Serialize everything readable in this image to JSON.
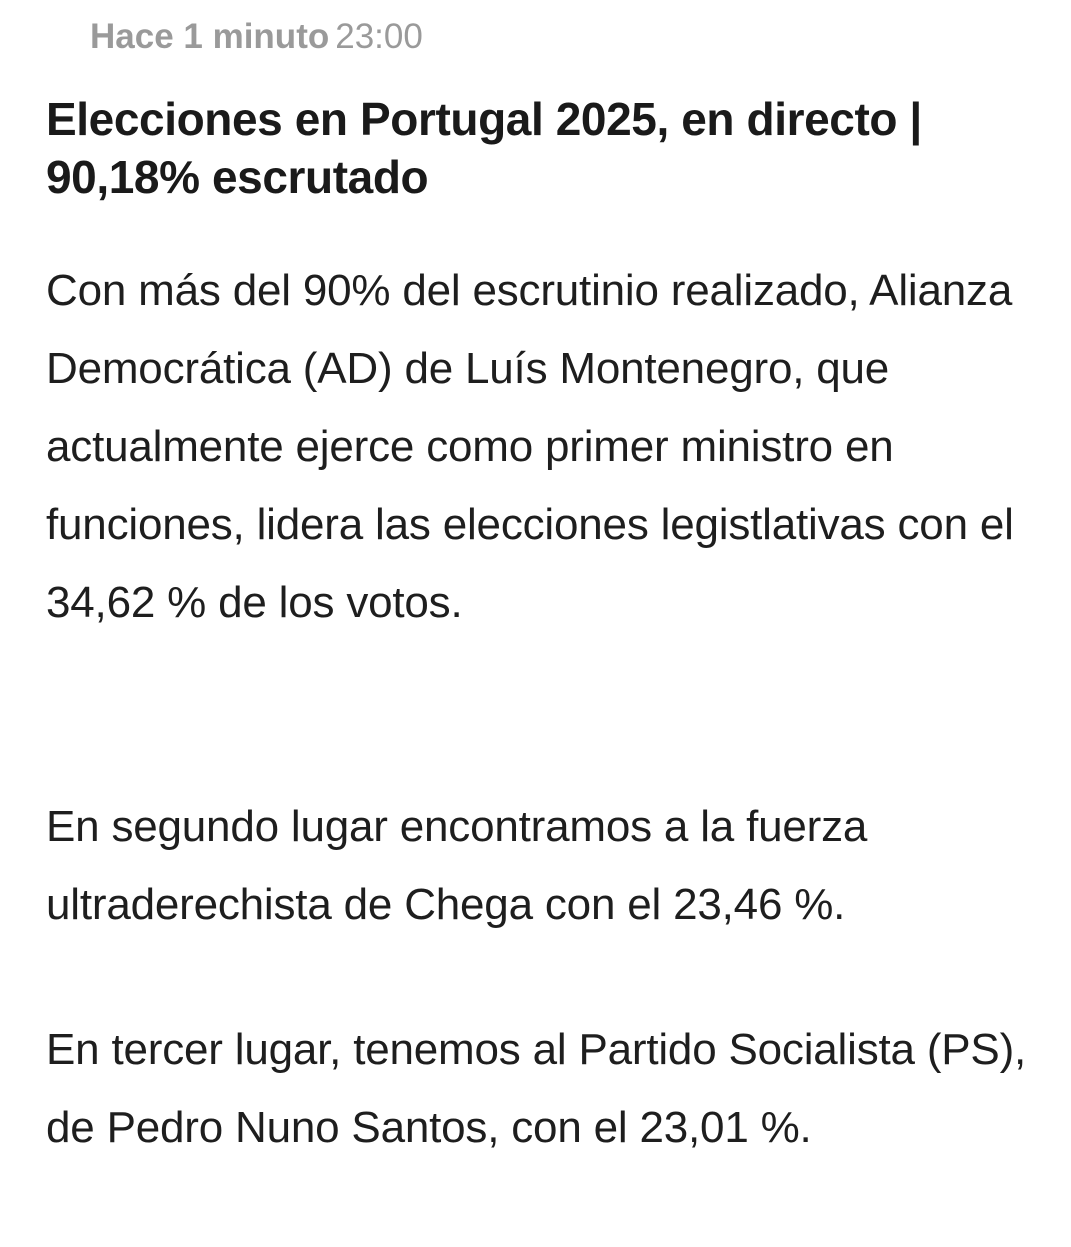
{
  "entry": {
    "time_ago": "Hace 1 minuto",
    "time": "23:00",
    "headline": "Elecciones en Portugal 2025, en directo | 90,18% escrutado",
    "paragraphs": [
      "Con más del 90% del escrutinio realizado, Alianza Democrática (AD) de Luís Montenegro, que actualmente ejerce como primer ministro en funciones, lidera las elecciones legistlativas con el 34,62 % de los votos.",
      "En segundo lugar encontramos a la fuerza ultraderechista de Chega con el 23,46 %.",
      "En tercer lugar, tenemos al Partido Socialista (PS), de Pedro Nuno Santos, con el 23,01 %."
    ]
  }
}
